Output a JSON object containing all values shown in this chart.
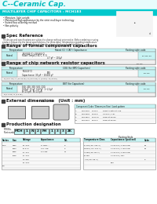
{
  "title_logo": "C--Ceramic Cap.",
  "subtitle": "MULTILAYER CHIP CAPACITORS : MCH183",
  "cyan_stripe": "#b8f8f8",
  "cyan_header_bg": "#00d4d8",
  "cyan_mid": "#00c0c4",
  "subtitle_bg": "#00c8cc",
  "subtitle_text_color": "#ffffff",
  "features": [
    "Miniature, light weight",
    "Maintained high appearance by the strict multilayer technology",
    "Suited flow soldering method",
    "Non-polarity"
  ],
  "section1_title": "Spec Reference",
  "section1_body1": "The design and specifications are subject to change without prior notice. Before ordering or using",
  "section1_body2": "product, please see the latest specifications. For more detail information regarding temperature",
  "section1_body3": "characteristics code and packaging style code, please check product distribution.",
  "section2_title": "Range of formal component capacitors",
  "section3_title": "Range of chip network resistor capacitors",
  "section4_title": "External dimensions",
  "section5_title": "Production designation",
  "prod_code_parts": [
    "MCH",
    "1",
    "N",
    "2",
    "PH",
    "1",
    "3",
    "3",
    "ZK"
  ],
  "bg_color": "#ffffff",
  "table_header_bg": "#c8f4f4",
  "table_row_bg": "#e8fcfc",
  "row_alt_bg": "#ffffff",
  "border_color": "#888888",
  "section_sq_color": "#404040",
  "text_dark": "#111111",
  "text_med": "#333333",
  "cyan_dark": "#00b8bc",
  "cyan_box": "#c0f0f0"
}
